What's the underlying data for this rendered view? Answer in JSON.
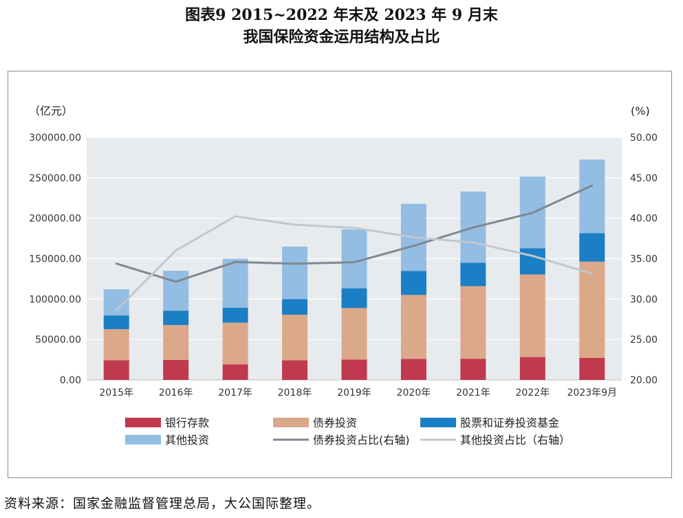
{
  "title_line1": "图表9  2015~2022 年末及 2023 年 9 月末",
  "title_line2": "我国保险资金运用结构及占比",
  "source": "资料来源：国家金融监督管理总局，大公国际整理。",
  "chart_data": {
    "type": "bar",
    "stacked": true,
    "categories": [
      "2015年",
      "2016年",
      "2017年",
      "2018年",
      "2019年",
      "2020年",
      "2021年",
      "2022年",
      "2023年9月"
    ],
    "y_left_label": "（亿元）",
    "y_right_label": "(%)",
    "y_left_ticks": [
      "0.00",
      "50000.00",
      "100000.00",
      "150000.00",
      "200000.00",
      "250000.00",
      "300000.00"
    ],
    "y_right_ticks": [
      "20.00",
      "25.00",
      "30.00",
      "35.00",
      "40.00",
      "45.00",
      "50.00"
    ],
    "ylim_left": [
      0,
      300000
    ],
    "ylim_right": [
      20,
      50
    ],
    "grid": true,
    "legend_position": "bottom",
    "series": [
      {
        "name": "银行存款",
        "kind": "bar",
        "color": "#c0394f",
        "values": [
          24350,
          24844,
          19274,
          24364,
          25227,
          25973,
          26180,
          28350,
          27200
        ]
      },
      {
        "name": "债券投资",
        "kind": "bar",
        "color": "#dba88a",
        "values": [
          38446,
          43050,
          51613,
          56383,
          63755,
          79115,
          89825,
          102150,
          119100
        ]
      },
      {
        "name": "股票和证券投资基金",
        "kind": "bar",
        "color": "#1a7fc4",
        "values": [
          16969,
          17788,
          18353,
          19220,
          24365,
          29710,
          29000,
          32300,
          35300
        ]
      },
      {
        "name": "其他投资",
        "kind": "bar",
        "color": "#93bde2",
        "values": [
          32401,
          49317,
          60717,
          65000,
          72965,
          83000,
          88000,
          88700,
          91000
        ]
      },
      {
        "name": "债券投资占比(右轴)",
        "kind": "line",
        "color": "#7e8792",
        "axis": "right",
        "values": [
          34.39,
          32.15,
          34.59,
          34.37,
          34.56,
          36.59,
          38.85,
          40.67,
          44.05
        ]
      },
      {
        "name": "其他投资占比（右轴）",
        "kind": "line",
        "color": "#c2c7cd",
        "axis": "right",
        "values": [
          28.62,
          36.02,
          40.23,
          39.2,
          38.82,
          37.64,
          37.0,
          35.34,
          33.15
        ]
      }
    ]
  }
}
